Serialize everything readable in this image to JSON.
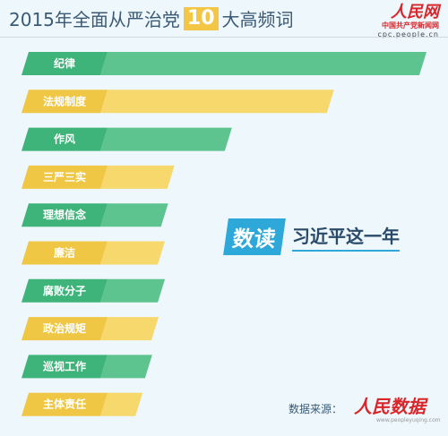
{
  "header": {
    "title_before": "2015年全面从严治党",
    "title_number": "10",
    "title_after": "大高频词"
  },
  "logo": {
    "name": "人民网",
    "subtitle": "中国共产党新闻网",
    "url": "cpc.people.cn"
  },
  "badge": {
    "highlight": "数读",
    "text": "习近平这一年"
  },
  "source": {
    "label": "数据来源：",
    "org": "人民数据",
    "url": "www.peopleyuqing.com"
  },
  "colors": {
    "green": "#3fb47a",
    "green_light": "#5dc48f",
    "yellow": "#f0c744",
    "yellow_light": "#f6d86c"
  },
  "chart_data": {
    "type": "bar",
    "orientation": "horizontal",
    "categories": [
      "纪律",
      "法规制度",
      "作风",
      "三严三实",
      "理想信念",
      "廉洁",
      "腐败分子",
      "政治规矩",
      "巡视工作",
      "主体责任"
    ],
    "values": [
      100,
      71,
      39,
      21,
      19,
      18,
      18,
      16,
      14,
      11
    ],
    "bar_colors": [
      "green",
      "yellow",
      "green",
      "yellow",
      "green",
      "yellow",
      "green",
      "yellow",
      "green",
      "yellow"
    ],
    "grid": false,
    "legend": "none"
  }
}
